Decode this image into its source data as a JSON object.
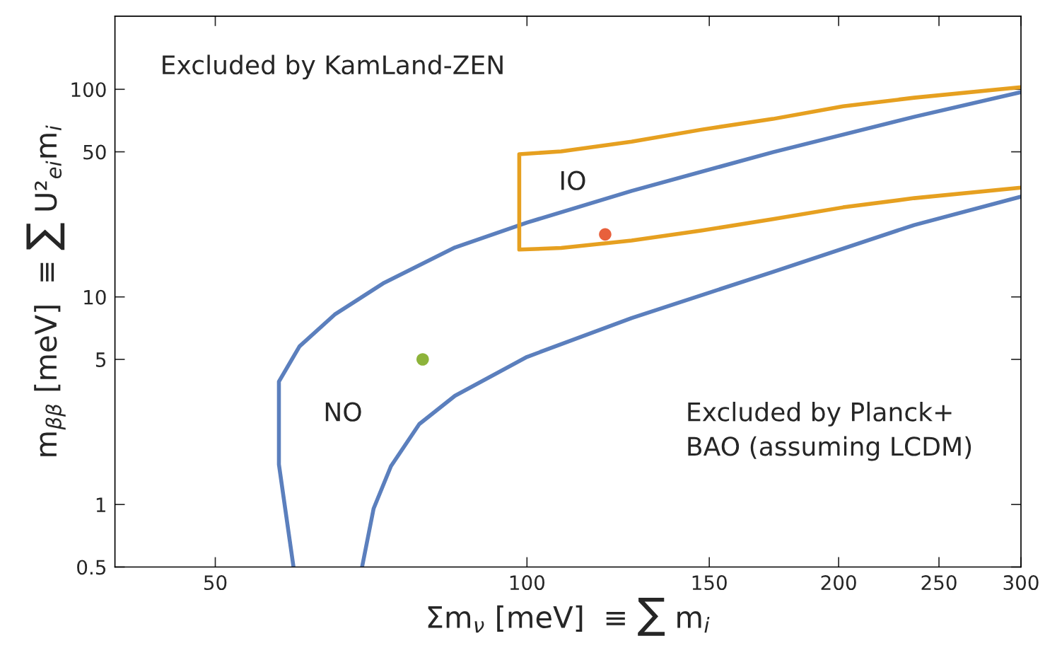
{
  "chart_data": {
    "type": "line",
    "xlabel": "Σm$_{ν}$ [meV]  ≡ ∑ m$_{i}$",
    "ylabel": "m$_{ββ}$ [meV]  ≡ ∑ U²$_{ei}$m$_{i}$",
    "log": "xy",
    "grid": false,
    "legend": false,
    "line_style": "solid",
    "xlim": [
      40,
      300
    ],
    "ylim": [
      0.5,
      225
    ],
    "xticks": [
      50,
      100,
      150,
      200,
      250,
      300
    ],
    "yticks": [
      0.5,
      1,
      5,
      10,
      50,
      100
    ],
    "series": [
      {
        "color": "#5b7fbd",
        "x": [
          59.5,
          57.6,
          57.6,
          60.3,
          65.2,
          72.8,
          85.2,
          100,
          126.2,
          172.8,
          236.6,
          300
        ],
        "values": [
          0.5,
          1.56,
          3.91,
          5.78,
          8.22,
          11.7,
          17.3,
          22.8,
          32.4,
          49.8,
          73.7,
          96.9
        ]
      },
      {
        "color": "#5b7fbd",
        "x": [
          69.3,
          71.1,
          73.9,
          78.7,
          85.2,
          100,
          126.2,
          172.8,
          236.6,
          300
        ],
        "values": [
          0.5,
          0.955,
          1.53,
          2.44,
          3.34,
          5.14,
          7.91,
          13.2,
          22.2,
          30.4
        ]
      },
      {
        "color": "#e6a020",
        "x": [
          300,
          236.6,
          202,
          172.8,
          147.6,
          126.2,
          107.9,
          98.3,
          98.3,
          107.9,
          126.2,
          147.6,
          172.8,
          202,
          236.6,
          300
        ],
        "values": [
          33.6,
          29.9,
          27.0,
          23.7,
          20.9,
          18.7,
          17.2,
          16.9,
          48.7,
          50.2,
          56.0,
          64.0,
          72.0,
          82.8,
          91.1,
          102.4
        ]
      },
      {
        "type": "scatter",
        "marker": "circle",
        "color": "#e8603c",
        "x": [
          119
        ],
        "values": [
          20
        ]
      },
      {
        "type": "scatter",
        "marker": "circle",
        "color": "#8db33a",
        "x": [
          79.3
        ],
        "values": [
          5
        ]
      }
    ],
    "annotations": [
      "Excluded by KamLand-ZEN",
      "IO",
      "NO",
      "Excluded by Planck+\nBAO (assuming LCDM)"
    ]
  }
}
